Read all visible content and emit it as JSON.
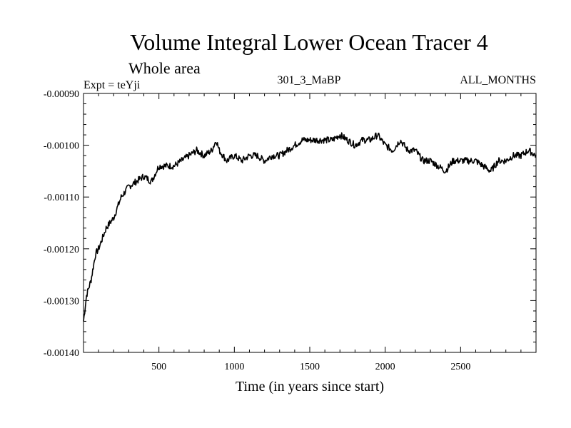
{
  "chart_data": {
    "type": "line",
    "title": "Volume Integral Lower Ocean Tracer 4",
    "subtitle": "Whole area",
    "experiment_label": "Expt = teYji",
    "run_label": "301_3_MaBP",
    "months_label": "ALL_MONTHS",
    "xlabel": "Time (in years since start)",
    "ylabel": "",
    "xlim": [
      0,
      3000
    ],
    "ylim": [
      -0.0014,
      -0.0009
    ],
    "xticks": [
      500,
      1000,
      1500,
      2000,
      2500
    ],
    "xtick_labels": [
      "500",
      "1000",
      "1500",
      "2000",
      "2500"
    ],
    "yticks": [
      -0.0009,
      -0.001,
      -0.0011,
      -0.0012,
      -0.0013,
      -0.0014
    ],
    "ytick_labels": [
      "-0.00090",
      "-0.00100",
      "-0.00110",
      "-0.00120",
      "-0.00130",
      "-0.00140"
    ],
    "grid": false,
    "series": [
      {
        "name": "Volume Integral Lower Ocean Tracer 4",
        "x": [
          0,
          20,
          50,
          80,
          100,
          150,
          200,
          250,
          300,
          350,
          400,
          450,
          500,
          550,
          600,
          650,
          700,
          750,
          800,
          850,
          880,
          900,
          950,
          1000,
          1050,
          1100,
          1150,
          1200,
          1250,
          1300,
          1350,
          1400,
          1450,
          1500,
          1550,
          1600,
          1650,
          1700,
          1750,
          1800,
          1850,
          1900,
          1950,
          2000,
          2050,
          2100,
          2150,
          2200,
          2250,
          2300,
          2350,
          2400,
          2450,
          2500,
          2550,
          2600,
          2650,
          2700,
          2750,
          2800,
          2850,
          2900,
          2950,
          3000
        ],
        "values": [
          -0.00134,
          -0.00129,
          -0.00126,
          -0.00121,
          -0.0012,
          -0.00116,
          -0.00114,
          -0.0011,
          -0.00108,
          -0.00107,
          -0.00106,
          -0.00107,
          -0.00104,
          -0.00104,
          -0.00104,
          -0.00103,
          -0.00102,
          -0.00101,
          -0.00102,
          -0.00101,
          -0.00099,
          -0.00101,
          -0.00103,
          -0.00102,
          -0.00103,
          -0.00102,
          -0.00102,
          -0.00103,
          -0.00102,
          -0.00102,
          -0.00101,
          -0.001,
          -0.00099,
          -0.00099,
          -0.00099,
          -0.00099,
          -0.00099,
          -0.00098,
          -0.00099,
          -0.001,
          -0.00099,
          -0.00099,
          -0.00098,
          -0.001,
          -0.00101,
          -0.00099,
          -0.00101,
          -0.00101,
          -0.00103,
          -0.00103,
          -0.00104,
          -0.00105,
          -0.00103,
          -0.00103,
          -0.00103,
          -0.00103,
          -0.00104,
          -0.00105,
          -0.00103,
          -0.00103,
          -0.00102,
          -0.00102,
          -0.00101,
          -0.00102
        ]
      }
    ]
  }
}
